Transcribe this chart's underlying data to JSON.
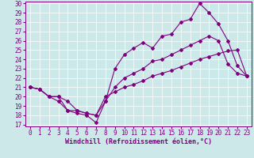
{
  "title": "",
  "xlabel": "Windchill (Refroidissement éolien,°C)",
  "ylabel": "",
  "background_color": "#cde8e8",
  "line_color": "#800080",
  "grid_color": "#b8d8d8",
  "xlim": [
    -0.5,
    23.5
  ],
  "ylim": [
    17,
    30
  ],
  "xticks": [
    0,
    1,
    2,
    3,
    4,
    5,
    6,
    7,
    8,
    9,
    10,
    11,
    12,
    13,
    14,
    15,
    16,
    17,
    18,
    19,
    20,
    21,
    22,
    23
  ],
  "yticks": [
    17,
    18,
    19,
    20,
    21,
    22,
    23,
    24,
    25,
    26,
    27,
    28,
    29,
    30
  ],
  "line1_x": [
    0,
    1,
    2,
    3,
    4,
    5,
    6,
    7,
    8,
    9,
    10,
    11,
    12,
    13,
    14,
    15,
    16,
    17,
    18,
    19,
    20,
    21,
    22,
    23
  ],
  "line1_y": [
    21.0,
    20.8,
    20.0,
    19.5,
    18.5,
    18.2,
    18.0,
    17.2,
    19.5,
    23.0,
    24.5,
    25.2,
    25.8,
    25.2,
    26.5,
    26.7,
    28.0,
    28.3,
    30.0,
    29.0,
    27.8,
    26.0,
    23.3,
    22.2
  ],
  "line2_x": [
    0,
    1,
    2,
    3,
    4,
    5,
    6,
    7,
    8,
    9,
    10,
    11,
    12,
    13,
    14,
    15,
    16,
    17,
    18,
    19,
    20,
    21,
    22,
    23
  ],
  "line2_y": [
    21.0,
    20.8,
    20.0,
    20.0,
    18.5,
    18.5,
    18.2,
    18.0,
    19.5,
    21.0,
    22.0,
    22.5,
    23.0,
    23.8,
    24.0,
    24.5,
    25.0,
    25.5,
    26.0,
    26.5,
    26.0,
    23.5,
    22.5,
    22.2
  ],
  "line3_x": [
    0,
    1,
    2,
    3,
    4,
    5,
    6,
    7,
    8,
    9,
    10,
    11,
    12,
    13,
    14,
    15,
    16,
    17,
    18,
    19,
    20,
    21,
    22,
    23
  ],
  "line3_y": [
    21.0,
    20.8,
    20.0,
    20.0,
    19.5,
    18.5,
    18.2,
    18.0,
    20.0,
    20.5,
    21.0,
    21.3,
    21.7,
    22.2,
    22.5,
    22.8,
    23.2,
    23.6,
    24.0,
    24.3,
    24.6,
    24.9,
    25.0,
    22.2
  ],
  "marker": "D",
  "markersize": 2.0,
  "linewidth": 0.8,
  "xlabel_fontsize": 6,
  "tick_fontsize": 5.5
}
